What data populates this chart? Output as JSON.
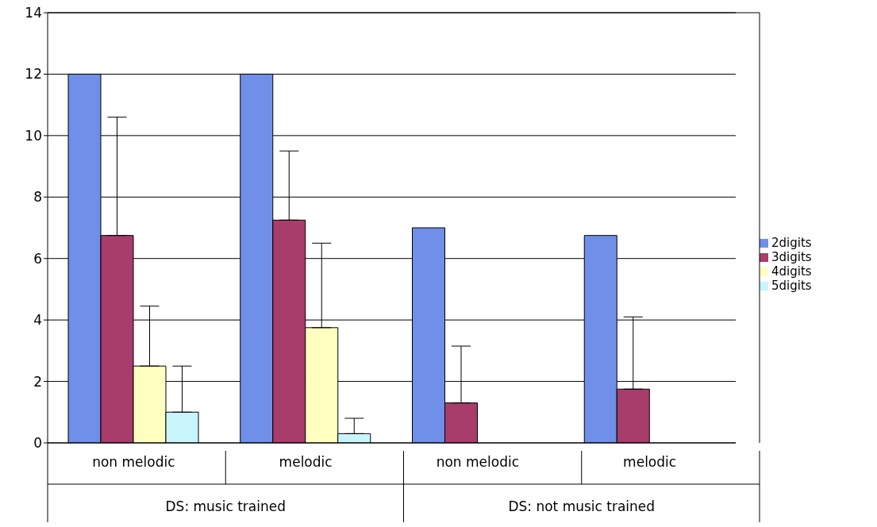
{
  "chart_data": {
    "type": "bar",
    "categories": [
      "non melodic",
      "melodic",
      "non melodic",
      "melodic"
    ],
    "annotations": [
      "DS: music trained",
      "DS: not music trained"
    ],
    "series": [
      {
        "name": "2digits",
        "color": "#6f8fe8",
        "values": [
          12,
          12,
          7,
          6.75
        ]
      },
      {
        "name": "3digits",
        "color": "#a83c6a",
        "values": [
          6.75,
          7.25,
          1.3,
          1.75
        ],
        "errors": [
          [
            6.75,
            10.6
          ],
          [
            7.25,
            9.5
          ],
          [
            1.3,
            3.15
          ],
          [
            1.75,
            4.1
          ]
        ]
      },
      {
        "name": "4digits",
        "color": "#ffffc0",
        "values": [
          2.5,
          3.75,
          0,
          0
        ],
        "errors": [
          [
            2.5,
            4.45
          ],
          [
            3.75,
            6.5
          ],
          null,
          null
        ]
      },
      {
        "name": "5digits",
        "color": "#c8f4fc",
        "values": [
          1,
          0.3,
          0,
          0
        ],
        "errors": [
          [
            1,
            2.5
          ],
          [
            0.3,
            0.8
          ],
          null,
          null
        ]
      }
    ],
    "ylim": [
      0,
      14
    ],
    "yticks": [
      0,
      2,
      4,
      6,
      8,
      10,
      12,
      14
    ],
    "grid": "y",
    "legend": "right"
  }
}
